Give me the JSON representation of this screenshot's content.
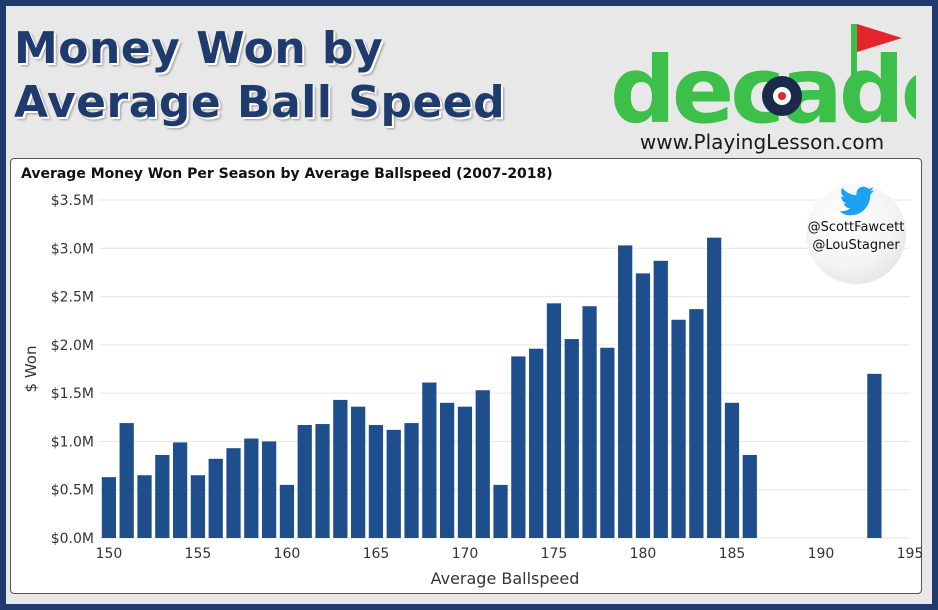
{
  "header": {
    "title_line1": "Money Won by",
    "title_line2": "Average Ball Speed"
  },
  "logo": {
    "word": "decade",
    "url": "www.PlayingLesson.com"
  },
  "badge": {
    "icon": "twitter-bird-icon",
    "handle1": "@ScottFawcett",
    "handle2": "@LouStagner"
  },
  "colors": {
    "border": "#1f3b6e",
    "bar": "#1f4e8c",
    "logo_green": "#3cc04a",
    "logo_navy": "#1b2a4a",
    "flag_red": "#e3262b"
  },
  "chart_data": {
    "type": "bar",
    "title": "Average Money Won Per Season by Average Ballspeed (2007-2018)",
    "xlabel": "Average Ballspeed",
    "ylabel": "$ Won",
    "xlim": [
      149.5,
      195
    ],
    "ylim": [
      0,
      3.5
    ],
    "x_ticks": [
      150,
      155,
      160,
      165,
      170,
      175,
      180,
      185,
      190,
      195
    ],
    "y_ticks": [
      0,
      0.5,
      1.0,
      1.5,
      2.0,
      2.5,
      3.0,
      3.5
    ],
    "y_tick_labels": [
      "$0.0M",
      "$0.5M",
      "$1.0M",
      "$1.5M",
      "$2.0M",
      "$2.5M",
      "$3.0M",
      "$3.5M"
    ],
    "grid": true,
    "series": [
      {
        "x": [
          150,
          151,
          152,
          153,
          154,
          155,
          156,
          157,
          158,
          159,
          160,
          161,
          162,
          163,
          164,
          165,
          166,
          167,
          168,
          169,
          170,
          171,
          172,
          173,
          174,
          175,
          176,
          177,
          178,
          179,
          180,
          181,
          182,
          183,
          184,
          185,
          186,
          193
        ],
        "values": [
          0.63,
          1.19,
          0.65,
          0.86,
          0.99,
          0.65,
          0.82,
          0.93,
          1.03,
          1.0,
          0.55,
          1.17,
          1.18,
          1.43,
          1.36,
          1.17,
          1.12,
          1.19,
          1.61,
          1.4,
          1.36,
          1.53,
          0.55,
          1.88,
          1.96,
          2.43,
          2.06,
          2.4,
          1.97,
          3.03,
          2.74,
          2.87,
          2.26,
          2.37,
          3.11,
          1.4,
          0.86,
          1.7
        ]
      }
    ]
  }
}
